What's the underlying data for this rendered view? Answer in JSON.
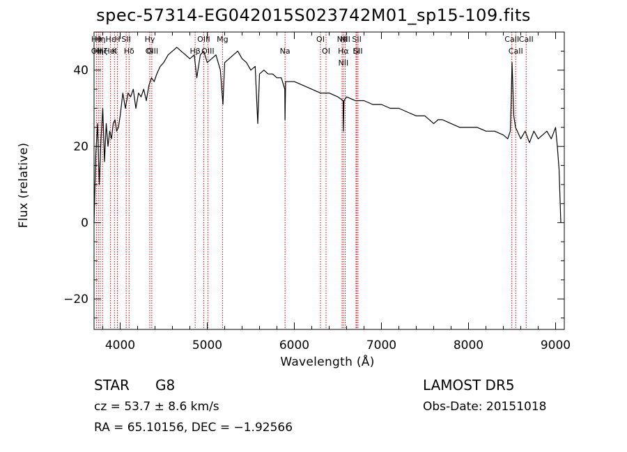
{
  "chart_data": {
    "type": "line",
    "title": "spec-57314-EG042015S023742M01_sp15-109.fits",
    "xlabel": "Wavelength (Å)",
    "ylabel": "Flux (relative)",
    "xlim": [
      3700,
      9100
    ],
    "ylim": [
      -28,
      50
    ],
    "xticks": [
      4000,
      5000,
      6000,
      7000,
      8000,
      9000
    ],
    "xtick_labels": [
      "4000",
      "5000",
      "6000",
      "7000",
      "8000",
      "9000"
    ],
    "yticks": [
      -20,
      0,
      20,
      40
    ],
    "ytick_labels": [
      "−20",
      "0",
      "20",
      "40"
    ],
    "grid": false,
    "series": [
      {
        "line_color": "#000000",
        "x": [
          3700,
          3720,
          3740,
          3760,
          3780,
          3800,
          3820,
          3840,
          3860,
          3880,
          3900,
          3920,
          3940,
          3960,
          3980,
          4000,
          4030,
          4060,
          4090,
          4120,
          4150,
          4180,
          4210,
          4240,
          4270,
          4300,
          4330,
          4360,
          4390,
          4420,
          4460,
          4500,
          4550,
          4600,
          4650,
          4700,
          4750,
          4800,
          4850,
          4880,
          4920,
          4960,
          5000,
          5050,
          5100,
          5150,
          5180,
          5200,
          5250,
          5300,
          5350,
          5400,
          5450,
          5500,
          5550,
          5580,
          5600,
          5650,
          5700,
          5750,
          5800,
          5850,
          5890,
          5893,
          5900,
          5950,
          6000,
          6100,
          6200,
          6300,
          6400,
          6500,
          6560,
          6563,
          6570,
          6600,
          6700,
          6800,
          6900,
          7000,
          7100,
          7200,
          7300,
          7400,
          7500,
          7600,
          7650,
          7700,
          7800,
          7900,
          8000,
          8100,
          8200,
          8300,
          8400,
          8450,
          8480,
          8490,
          8500,
          8520,
          8540,
          8560,
          8600,
          8650,
          8700,
          8750,
          8800,
          8850,
          8900,
          8950,
          9000,
          9020,
          9040,
          9060
        ],
        "y": [
          0,
          18,
          26,
          10,
          22,
          30,
          16,
          26,
          20,
          24,
          22,
          26,
          27,
          24,
          25,
          28,
          34,
          30,
          34,
          33,
          35,
          30,
          34,
          33,
          35,
          32,
          36,
          38,
          37,
          39,
          41,
          42,
          44,
          45,
          46,
          45,
          44,
          43,
          44,
          38,
          44,
          45,
          42,
          43,
          44,
          40,
          31,
          42,
          43,
          44,
          45,
          43,
          42,
          40,
          41,
          26,
          39,
          40,
          39,
          39,
          38,
          38,
          35,
          27,
          37,
          37,
          37,
          36,
          35,
          34,
          34,
          33,
          32,
          24,
          32,
          33,
          32,
          32,
          31,
          31,
          30,
          30,
          29,
          28,
          28,
          26,
          27,
          27,
          26,
          25,
          25,
          25,
          24,
          24,
          23,
          22,
          24,
          32,
          42,
          28,
          25,
          24,
          22,
          24,
          21,
          24,
          22,
          23,
          24,
          22,
          25,
          20,
          14,
          0
        ]
      }
    ],
    "lines": [
      {
        "labels": [
          "Hθ",
          "OII"
        ],
        "x": 3727
      },
      {
        "labels": [
          "Hη"
        ],
        "x": 3750
      },
      {
        "labels": [
          "Hη"
        ],
        "x": 3771
      },
      {
        "labels": [
          "Hζ"
        ],
        "x": 3798
      },
      {
        "labels": [
          "Hε",
          "HeI"
        ],
        "x": 3889
      },
      {
        "labels": [
          "K"
        ],
        "x": 3934
      },
      {
        "labels": [
          "H"
        ],
        "x": 3968
      },
      {
        "labels": [
          "Hδ"
        ],
        "x": 4102
      },
      {
        "labels": [
          "SII"
        ],
        "x": 4069
      },
      {
        "labels": [
          "OIII"
        ],
        "x": 4363
      },
      {
        "labels": [
          "Hγ",
          "G"
        ],
        "x": 4340
      },
      {
        "labels": [
          "Hβ"
        ],
        "x": 4861
      },
      {
        "labels": [
          "OIII"
        ],
        "x": 4959
      },
      {
        "labels": [
          "OIII"
        ],
        "x": 5007
      },
      {
        "labels": [
          "Mg"
        ],
        "x": 5175
      },
      {
        "labels": [
          "Na"
        ],
        "x": 5893
      },
      {
        "labels": [
          "OI"
        ],
        "x": 6300
      },
      {
        "labels": [
          "OI"
        ],
        "x": 6364
      },
      {
        "labels": [
          "NII"
        ],
        "x": 6548
      },
      {
        "labels": [
          "Hα",
          "NII"
        ],
        "x": 6563
      },
      {
        "labels": [
          "NII"
        ],
        "x": 6584
      },
      {
        "labels": [
          "Li"
        ],
        "x": 6708
      },
      {
        "labels": [
          "SII"
        ],
        "x": 6717
      },
      {
        "labels": [
          "SII"
        ],
        "x": 6731
      },
      {
        "labels": [
          "CaII"
        ],
        "x": 8498
      },
      {
        "labels": [
          "CaII"
        ],
        "x": 8542
      },
      {
        "labels": [
          "CaII"
        ],
        "x": 8662
      }
    ]
  },
  "info": {
    "class_label": "STAR",
    "subclass": "G8",
    "survey": "LAMOST DR5",
    "cz": "cz = 53.7 ± 8.6 km/s",
    "obs_date": "Obs-Date: 20151018",
    "coords": "RA =  65.10156, DEC =  −1.92566"
  },
  "colors": {
    "spectrum": "#000000",
    "line_markers": "#cc0000",
    "background": "#ffffff"
  }
}
